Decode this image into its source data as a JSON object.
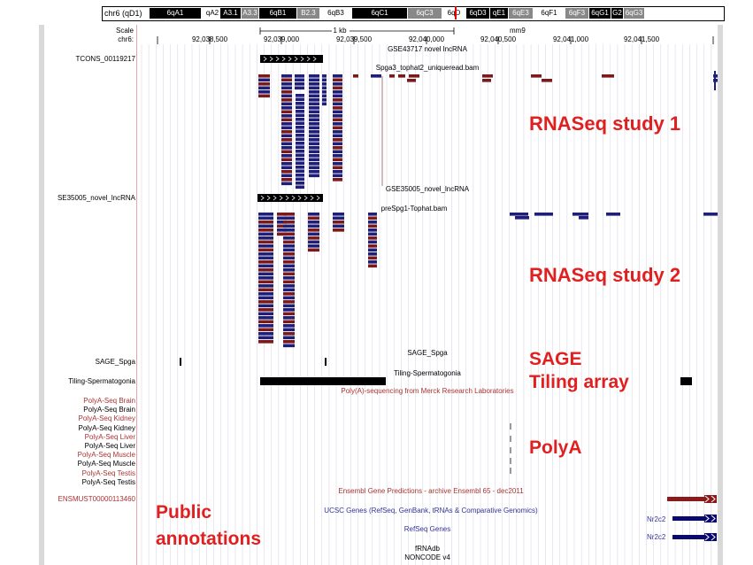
{
  "ideogram": {
    "chrom_label": "chr6 (qD1)",
    "bands": [
      {
        "name": "6qA1",
        "bg": "#000",
        "fg": "#fff"
      },
      {
        "name": "qA2",
        "bg": "#fff",
        "fg": "#000"
      },
      {
        "name": "A3.1",
        "bg": "#000",
        "fg": "#fff"
      },
      {
        "name": "A3.3",
        "bg": "#888",
        "fg": "#fff"
      },
      {
        "name": "6qB1",
        "bg": "#000",
        "fg": "#fff"
      },
      {
        "name": "B2.3",
        "bg": "#888",
        "fg": "#fff"
      },
      {
        "name": "6qB3",
        "bg": "#fff",
        "fg": "#000"
      },
      {
        "name": "6qC1",
        "bg": "#000",
        "fg": "#fff"
      },
      {
        "name": "6qC3",
        "bg": "#888",
        "fg": "#fff"
      },
      {
        "name": "6qD",
        "bg": "#fff",
        "fg": "#000"
      },
      {
        "name": "6qD3",
        "bg": "#000",
        "fg": "#fff"
      },
      {
        "name": "qE1",
        "bg": "#000",
        "fg": "#fff"
      },
      {
        "name": "6qE3",
        "bg": "#888",
        "fg": "#fff"
      },
      {
        "name": "6qF1",
        "bg": "#fff",
        "fg": "#000"
      },
      {
        "name": "6qF3",
        "bg": "#888",
        "fg": "#fff"
      },
      {
        "name": "6qG1",
        "bg": "#000",
        "fg": "#fff"
      },
      {
        "name": "G2",
        "bg": "#000",
        "fg": "#fff"
      },
      {
        "name": "6qG3",
        "bg": "#888",
        "fg": "#fff"
      }
    ]
  },
  "ruler": {
    "scale_label": "Scale",
    "chrom_label": "chr6:",
    "scale_bar_label": "1 kb",
    "assembly": "mm9",
    "positions": [
      "92,038,500",
      "92,039,000",
      "92,039,500",
      "92,040,000",
      "92,040,500",
      "92,041,000",
      "92,041,500"
    ]
  },
  "tracks": {
    "lncrna_center": "GSE43717 novel lncRNA",
    "lncrna_feature": "TCONS_00119217",
    "spga3_center": "Spga3_tophat2_uniqueread.bam",
    "gse35005_center": "GSE35005_novel_lncRNA",
    "gse35005_feature": "SE35005_novel_lncRNA",
    "prespg1_center": "preSpg1-Tophat.bam",
    "sage_center": "SAGE_Spga",
    "sage_label": "SAGE_Spga",
    "tiling_center": "Tiling-Spermatogonia",
    "tiling_label": "Tiling-Spermatogonia",
    "polya_center": "Poly(A)-sequencing from Merck Research Laboratories",
    "polya_labels": [
      {
        "text": "PolyA-Seq Brain",
        "color": "#a33"
      },
      {
        "text": "PolyA-Seq Brain",
        "color": "#000"
      },
      {
        "text": "PolyA-Seq Kidney",
        "color": "#a33"
      },
      {
        "text": "PolyA-Seq Kidney",
        "color": "#000"
      },
      {
        "text": "PolyA-Seq Liver",
        "color": "#a33"
      },
      {
        "text": "PolyA-Seq Liver",
        "color": "#000"
      },
      {
        "text": "PolyA-Seq Muscle",
        "color": "#a33"
      },
      {
        "text": "PolyA-Seq Muscle",
        "color": "#000"
      },
      {
        "text": "PolyA-Seq Testis",
        "color": "#a33"
      },
      {
        "text": "PolyA-Seq Testis",
        "color": "#000"
      }
    ],
    "ensembl_center": "Ensembl Gene Predictions - archive Ensembl 65 - dec2011",
    "ensembl_feature": "ENSMUST00000113460",
    "ucsc_center": "UCSC Genes (RefSeq, GenBank, tRNAs & Comparative Genomics)",
    "ucsc_gene": "Nr2c2",
    "refseq_center": "RefSeq Genes",
    "refseq_gene": "Nr2c2",
    "frnadb_center": "fRNAdb",
    "noncode_center": "NONCODE v4"
  },
  "annotations": {
    "rnaseq1": "RNASeq study 1",
    "rnaseq2": "RNASeq study 2",
    "sage": "SAGE",
    "tiling": "Tiling array",
    "polya": "PolyA",
    "public": "Public\nannotations"
  },
  "colors": {
    "forward_read": "#1f1f7a",
    "reverse_read": "#7a1a1a",
    "annotation_red": "#e02020",
    "gene_red": "#8b1a1a",
    "gene_navy": "#0a0a6e",
    "label_navy": "#333399",
    "label_maroon": "#a33"
  }
}
